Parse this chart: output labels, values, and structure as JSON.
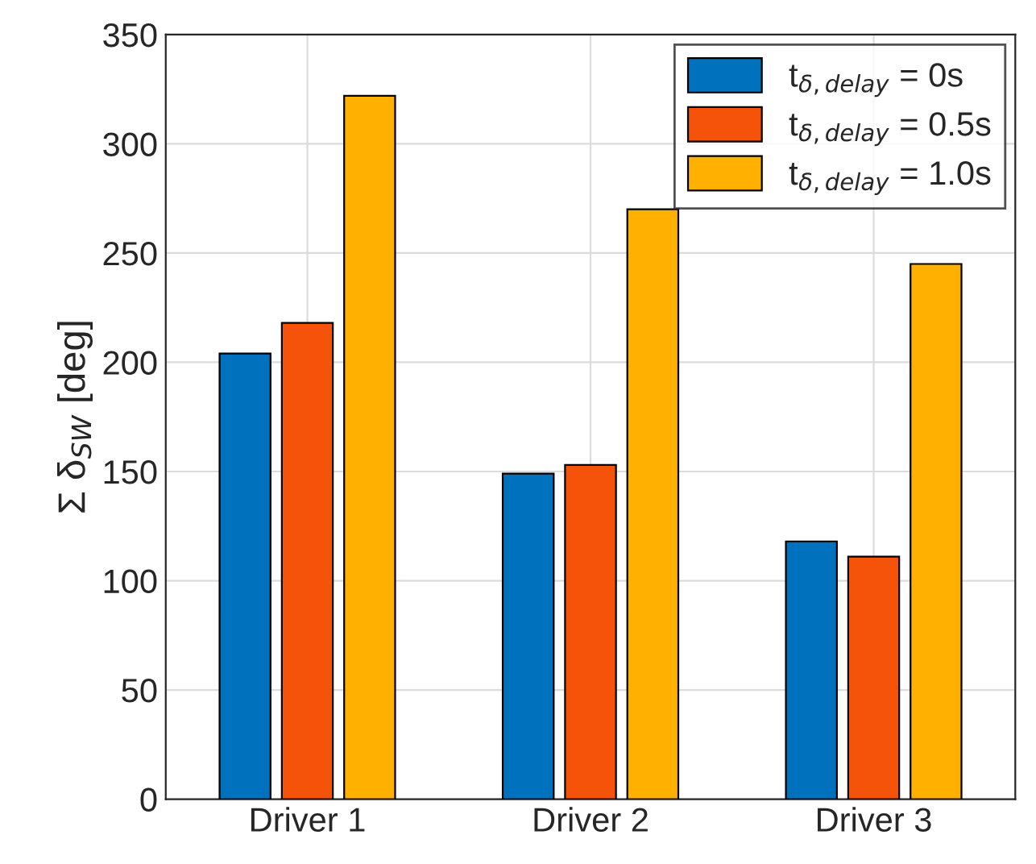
{
  "chart_data": {
    "type": "bar",
    "ylabel": "Σ δ$_{SW}$ [deg]",
    "categories": [
      "Driver 1",
      "Driver 2",
      "Driver 3"
    ],
    "series": [
      {
        "name": "t$_{δ,delay}$ = 0s",
        "color": "#0072bd",
        "values": [
          204,
          149,
          118
        ]
      },
      {
        "name": "t$_{δ,delay}$ = 0.5s",
        "color": "#f5520a",
        "values": [
          218,
          153,
          111
        ]
      },
      {
        "name": "t$_{δ,delay}$ = 1.0s",
        "color": "#ffb000",
        "values": [
          322,
          270,
          245
        ]
      }
    ],
    "ylim": [
      0,
      350
    ],
    "yticks": [
      0,
      50,
      100,
      150,
      200,
      250,
      300,
      350
    ],
    "grid": true,
    "legend": "top right"
  }
}
